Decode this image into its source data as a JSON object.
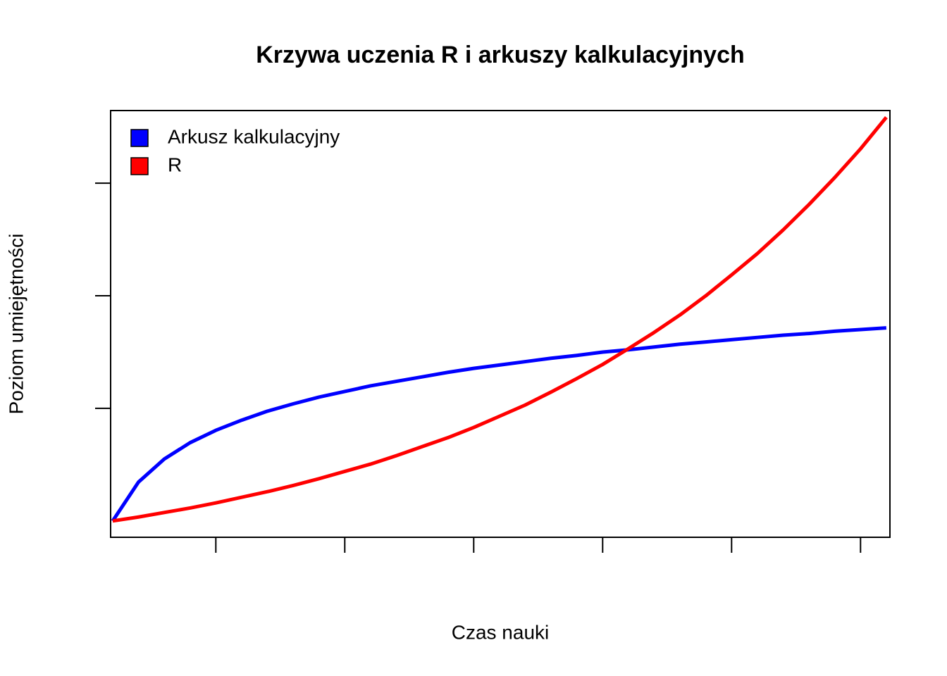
{
  "chart_data": {
    "type": "line",
    "title": "Krzywa uczenia R i arkuszy kalkulacyjnych",
    "x_label": "Czas nauki",
    "y_label": "Poziom umiejętności",
    "x": [
      1,
      2,
      3,
      4,
      5,
      6,
      7,
      8,
      9,
      10,
      11,
      12,
      13,
      14,
      15,
      16,
      17,
      18,
      19,
      20,
      21,
      22,
      23,
      24,
      25,
      26,
      27,
      28,
      29,
      30,
      31
    ],
    "series": [
      {
        "name": "Arkusz kalkulacyjny",
        "color": "#0000ff",
        "values": [
          0,
          0.69,
          1.1,
          1.39,
          1.61,
          1.79,
          1.95,
          2.08,
          2.2,
          2.3,
          2.4,
          2.48,
          2.56,
          2.64,
          2.71,
          2.77,
          2.83,
          2.89,
          2.94,
          3.0,
          3.04,
          3.09,
          3.14,
          3.18,
          3.22,
          3.26,
          3.3,
          3.33,
          3.37,
          3.4,
          3.43
        ]
      },
      {
        "name": "R",
        "color": "#ff0000",
        "values": [
          0,
          0.07,
          0.15,
          0.23,
          0.32,
          0.42,
          0.52,
          0.63,
          0.75,
          0.88,
          1.01,
          1.16,
          1.32,
          1.48,
          1.66,
          1.86,
          2.06,
          2.29,
          2.53,
          2.78,
          3.06,
          3.35,
          3.66,
          4.0,
          4.37,
          4.75,
          5.17,
          5.62,
          6.1,
          6.61,
          7.17
        ]
      }
    ],
    "xlim": [
      0.92,
      31.14
    ],
    "ylim": [
      -0.29,
      7.29
    ],
    "xticks": [
      5,
      10,
      15,
      20,
      25,
      30
    ],
    "yticks": [
      2,
      4,
      6
    ],
    "legend": "topleft",
    "grid": false
  }
}
